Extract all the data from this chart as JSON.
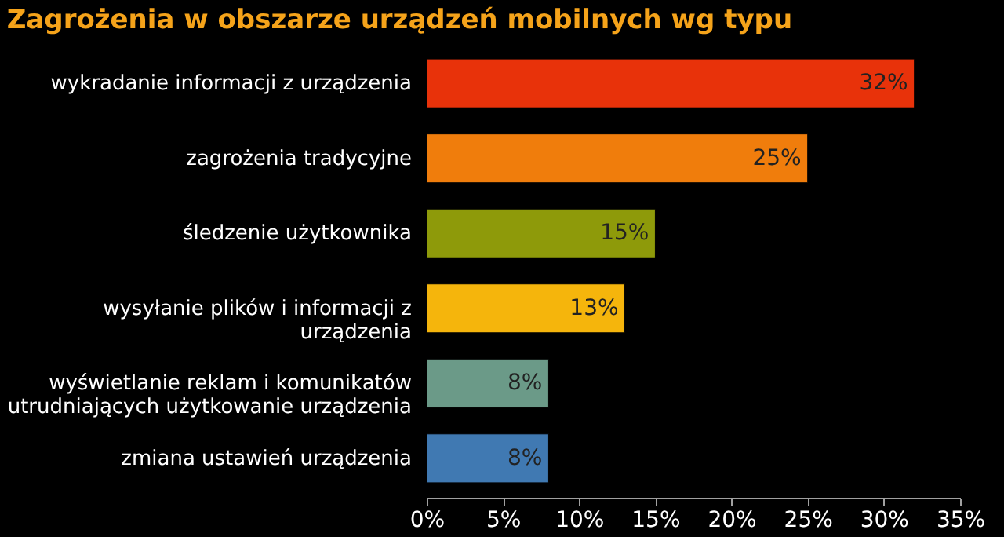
{
  "chart_data": {
    "type": "bar",
    "orientation": "horizontal",
    "title": "Zagrożenia w obszarze urządzeń mobilnych wg typu",
    "categories": [
      "wykradanie informacji z urządzenia",
      "zagrożenia tradycyjne",
      "śledzenie użytkownika",
      "wysyłanie plików i informacji z urządzenia",
      "wyświetlanie reklam i komunikatów utrudniających użytkowanie urządzenia",
      "zmiana ustawień urządzenia"
    ],
    "values": [
      32,
      25,
      15,
      13,
      8,
      8
    ],
    "value_labels": [
      "32%",
      "25%",
      "15%",
      "13%",
      "8%",
      "8%"
    ],
    "colors": [
      "#e8320a",
      "#f07d0c",
      "#8e9a0a",
      "#f5b50c",
      "#6b9a88",
      "#4079b2"
    ],
    "xlim": [
      0,
      35
    ],
    "xticks": [
      {
        "value": 0,
        "label": "0%"
      },
      {
        "value": 5,
        "label": "5%"
      },
      {
        "value": 10,
        "label": "10%"
      },
      {
        "value": 15,
        "label": "15%"
      },
      {
        "value": 20,
        "label": "20%"
      },
      {
        "value": 25,
        "label": "25%"
      },
      {
        "value": 30,
        "label": "30%"
      },
      {
        "value": 35,
        "label": "35%"
      }
    ],
    "grid": false
  }
}
